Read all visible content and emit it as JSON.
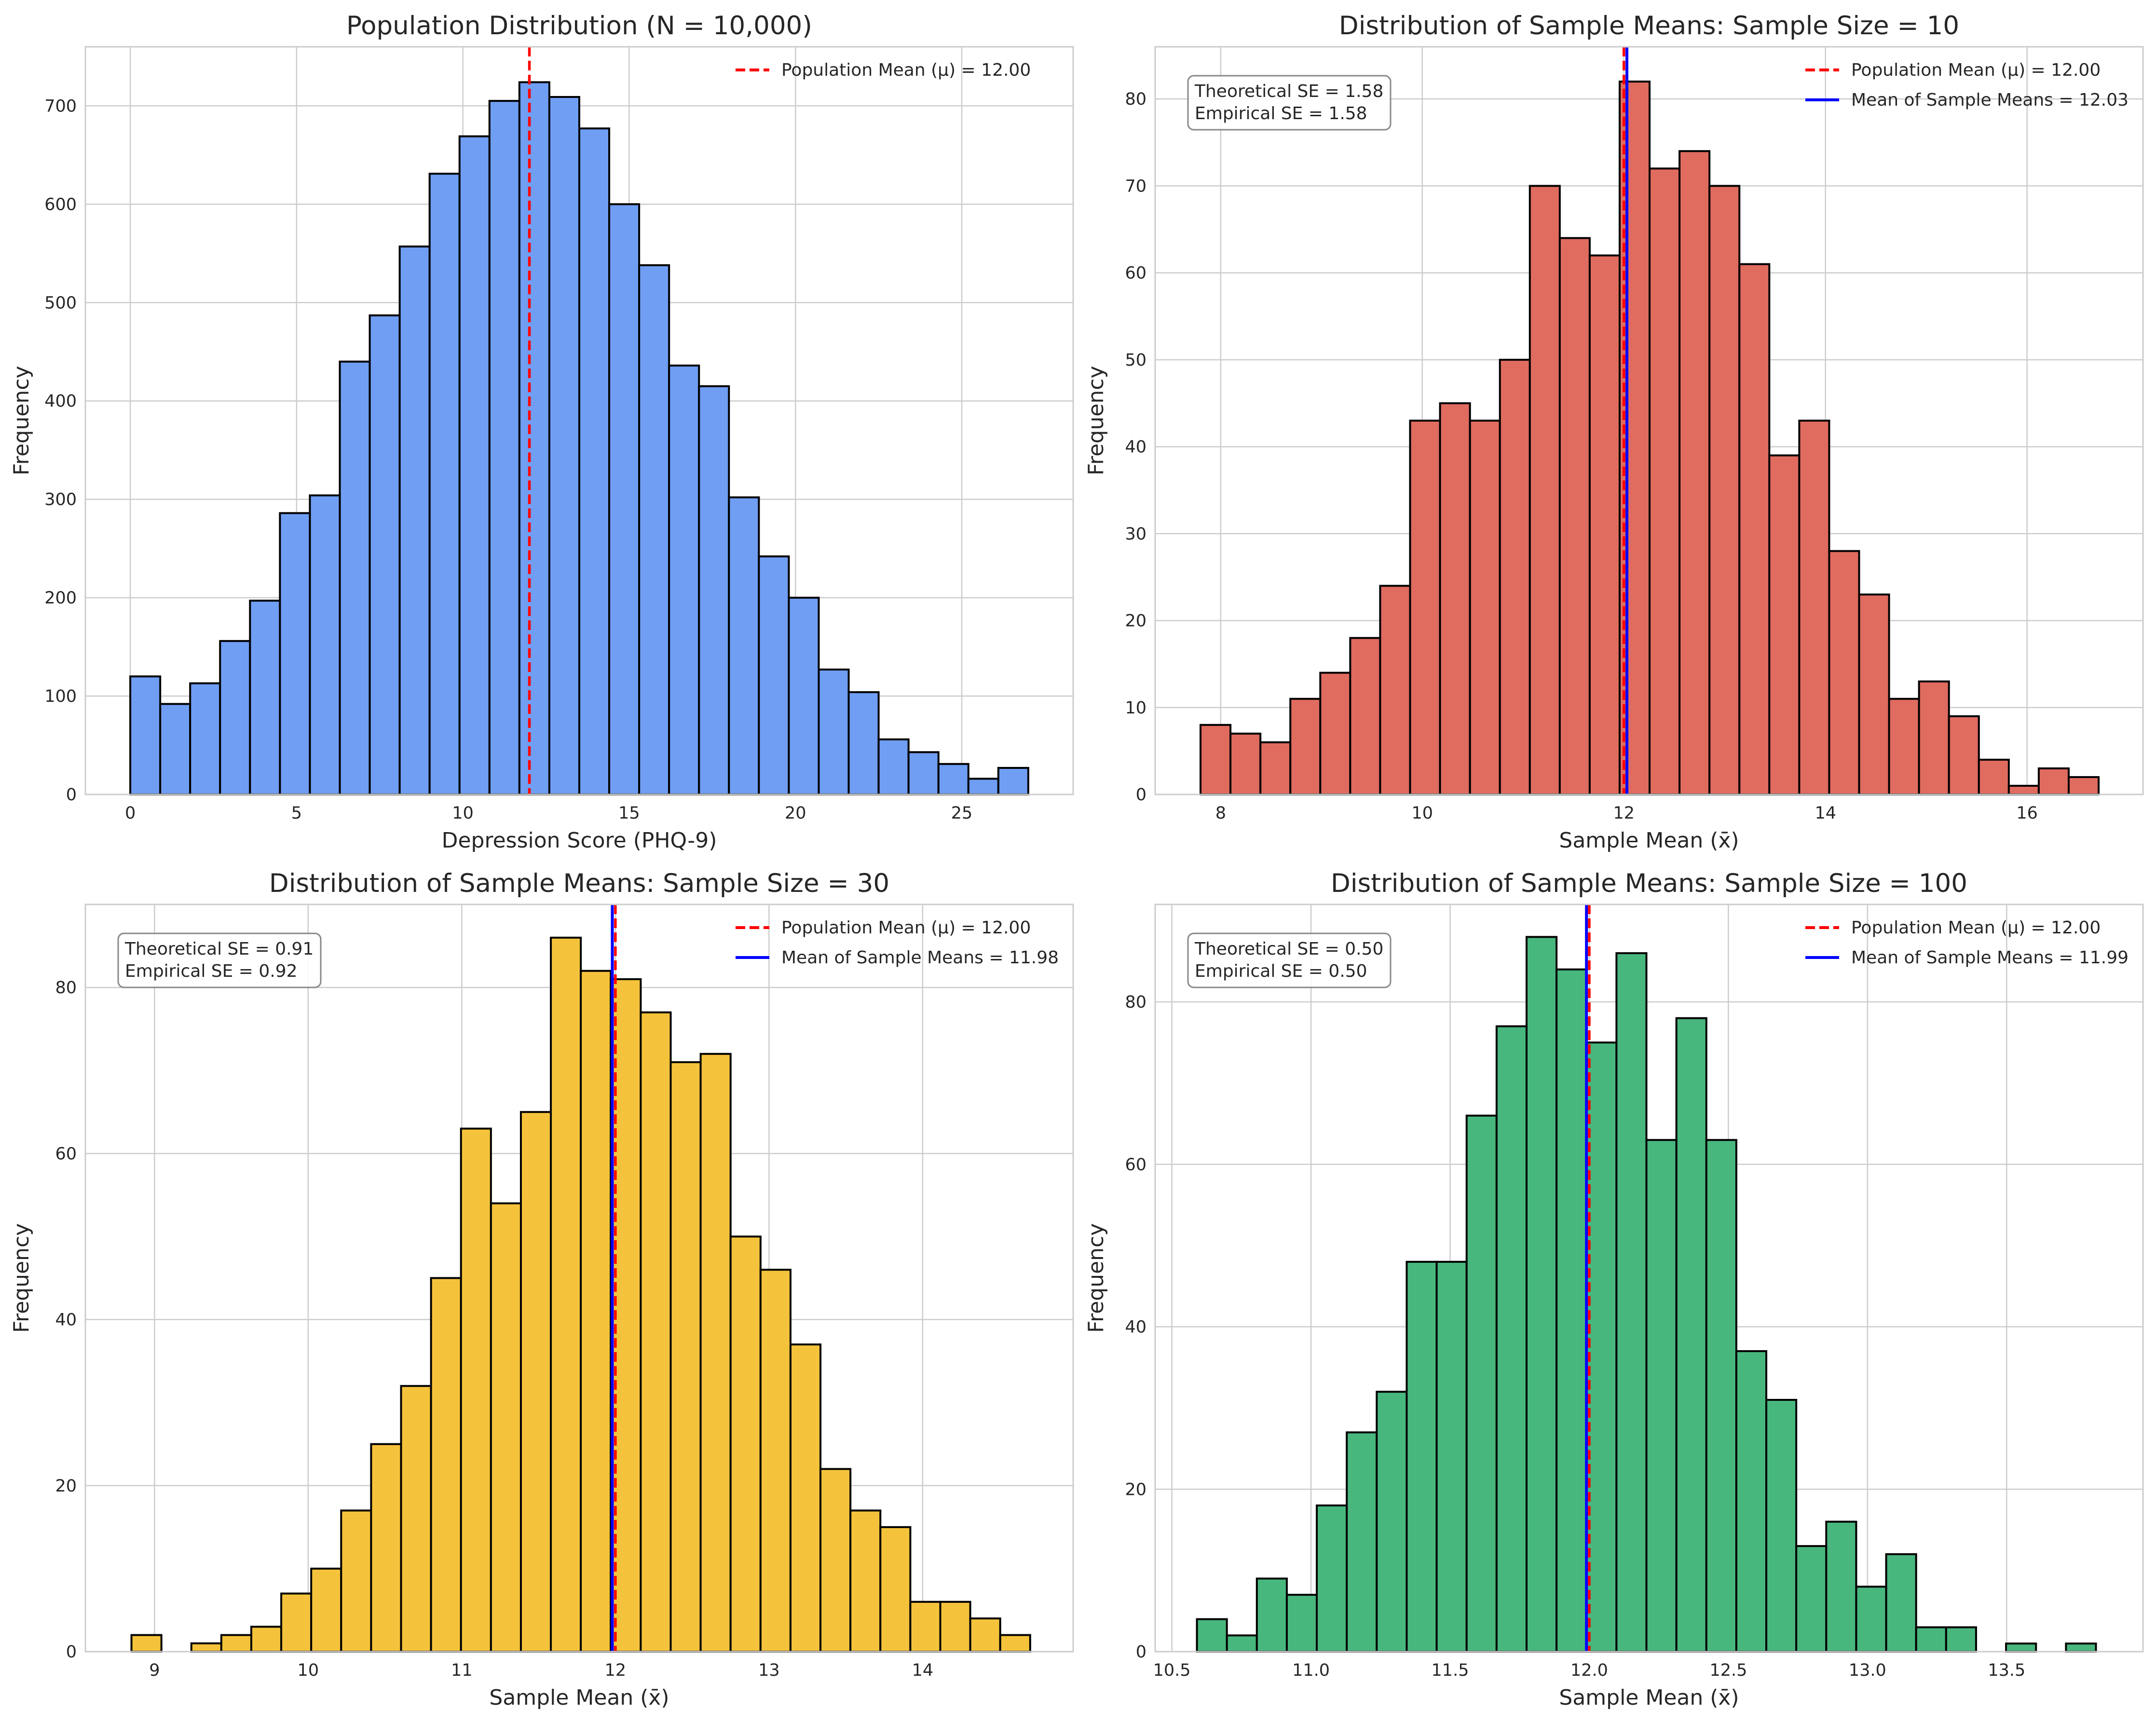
{
  "colors": {
    "mean_line": "#ff0000",
    "sample_mean_line": "#0000ff",
    "bar_edge": "#000000",
    "grid": "#cccccc"
  },
  "chart_data": [
    {
      "type": "histogram",
      "title": "Population Distribution (N = 10,000)",
      "xlabel": "Depression Score (PHQ-9)",
      "ylabel": "Frequency",
      "color": "#6f9ef3",
      "xlim": [
        -1.35,
        28.35
      ],
      "ylim": [
        0,
        760
      ],
      "xticks": [
        0,
        5,
        10,
        15,
        20,
        25
      ],
      "xtick_labels": [
        "0",
        "5",
        "10",
        "15",
        "20",
        "25"
      ],
      "yticks": [
        0,
        100,
        200,
        300,
        400,
        500,
        600,
        700
      ],
      "ytick_labels": [
        "0",
        "100",
        "200",
        "300",
        "400",
        "500",
        "600",
        "700"
      ],
      "bin_start": 0,
      "bin_width": 0.9,
      "counts": [
        120,
        92,
        113,
        156,
        197,
        286,
        304,
        440,
        487,
        557,
        631,
        669,
        705,
        724,
        709,
        677,
        600,
        538,
        436,
        415,
        302,
        242,
        200,
        127,
        104,
        56,
        43,
        31,
        16,
        27
      ],
      "population_mean": 12.0,
      "sample_means_mean": null,
      "legend": [
        "Population Mean (μ) = 12.00"
      ],
      "se_box": null
    },
    {
      "type": "histogram",
      "title": "Distribution of Sample Means: Sample Size = 10",
      "xlabel": "Sample Mean (x̄)",
      "ylabel": "Frequency",
      "color": "#e06b5f",
      "xlim": [
        7.35,
        17.15
      ],
      "ylim": [
        0,
        86
      ],
      "xticks": [
        8,
        10,
        12,
        14,
        16
      ],
      "xtick_labels": [
        "8",
        "10",
        "12",
        "14",
        "16"
      ],
      "yticks": [
        0,
        10,
        20,
        30,
        40,
        50,
        60,
        70,
        80
      ],
      "ytick_labels": [
        "0",
        "10",
        "20",
        "30",
        "40",
        "50",
        "60",
        "70",
        "80"
      ],
      "bin_start": 7.8,
      "bin_width": 0.297,
      "counts": [
        8,
        7,
        6,
        11,
        14,
        18,
        24,
        43,
        45,
        43,
        50,
        70,
        64,
        62,
        82,
        72,
        74,
        70,
        61,
        39,
        43,
        28,
        23,
        11,
        13,
        9,
        4,
        1,
        3,
        2
      ],
      "population_mean": 12.0,
      "sample_means_mean": 12.03,
      "legend": [
        "Population Mean (μ) = 12.00",
        "Mean of Sample Means = 12.03"
      ],
      "se_box": [
        "Theoretical SE = 1.58",
        "Empirical SE = 1.58"
      ]
    },
    {
      "type": "histogram",
      "title": "Distribution of Sample Means: Sample Size = 30",
      "xlabel": "Sample Mean (x̄)",
      "ylabel": "Frequency",
      "color": "#f5c33b",
      "xlim": [
        8.55,
        14.98
      ],
      "ylim": [
        0,
        90
      ],
      "xticks": [
        9,
        10,
        11,
        12,
        13,
        14
      ],
      "xtick_labels": [
        "9",
        "10",
        "11",
        "12",
        "13",
        "14"
      ],
      "yticks": [
        0,
        20,
        40,
        60,
        80
      ],
      "ytick_labels": [
        "0",
        "20",
        "40",
        "60",
        "80"
      ],
      "bin_start": 8.85,
      "bin_width": 0.195,
      "counts": [
        2,
        0,
        1,
        2,
        3,
        7,
        10,
        17,
        25,
        32,
        45,
        63,
        54,
        65,
        86,
        82,
        81,
        77,
        71,
        72,
        50,
        46,
        37,
        22,
        17,
        15,
        6,
        6,
        4,
        2
      ],
      "population_mean": 12.0,
      "sample_means_mean": 11.98,
      "legend": [
        "Population Mean (μ) = 12.00",
        "Mean of Sample Means = 11.98"
      ],
      "se_box": [
        "Theoretical SE = 0.91",
        "Empirical SE = 0.92"
      ]
    },
    {
      "type": "histogram",
      "title": "Distribution of Sample Means: Sample Size = 100",
      "xlabel": "Sample Mean (x̄)",
      "ylabel": "Frequency",
      "color": "#48b77d",
      "xlim": [
        10.44,
        13.99
      ],
      "ylim": [
        0,
        92
      ],
      "xticks": [
        10.5,
        11.0,
        11.5,
        12.0,
        12.5,
        13.0,
        13.5
      ],
      "xtick_labels": [
        "10.5",
        "11.0",
        "11.5",
        "12.0",
        "12.5",
        "13.0",
        "13.5"
      ],
      "yticks": [
        0,
        20,
        40,
        60,
        80
      ],
      "ytick_labels": [
        "0",
        "20",
        "40",
        "60",
        "80"
      ],
      "bin_start": 10.59,
      "bin_width": 0.1077,
      "counts": [
        4,
        2,
        9,
        7,
        18,
        27,
        32,
        48,
        48,
        66,
        77,
        88,
        84,
        75,
        86,
        63,
        78,
        63,
        37,
        31,
        13,
        16,
        8,
        12,
        3,
        3,
        0,
        1,
        0,
        1
      ],
      "population_mean": 12.0,
      "sample_means_mean": 11.99,
      "legend": [
        "Population Mean (μ) = 12.00",
        "Mean of Sample Means = 11.99"
      ],
      "se_box": [
        "Theoretical SE = 0.50",
        "Empirical SE = 0.50"
      ]
    }
  ]
}
